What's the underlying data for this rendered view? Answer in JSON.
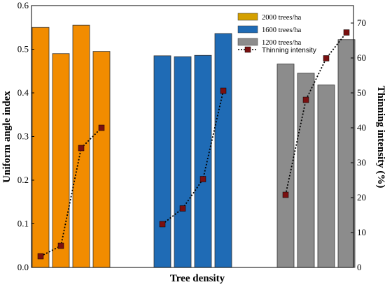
{
  "chart_data": {
    "type": "bar",
    "xlabel": "Tree density",
    "ylabel": "Uniform angle index",
    "y2label": "Thinning intensity (%)",
    "ylim": [
      0,
      0.6
    ],
    "y2lim": [
      0,
      75
    ],
    "yticks": [
      "0.0",
      "0.1",
      "0.2",
      "0.3",
      "0.4",
      "0.5",
      "0.6"
    ],
    "y2ticks": [
      "0",
      "10",
      "20",
      "30",
      "40",
      "50",
      "60",
      "70"
    ],
    "grid": false,
    "legend_position": "top-right",
    "series": [
      {
        "name": "2000 trees/ha",
        "color": "#f28c00",
        "legend_color": "#d4a000",
        "values": [
          0.55,
          0.49,
          0.555,
          0.495
        ]
      },
      {
        "name": "1600 trees/ha",
        "color": "#1f6bb5",
        "legend_color": "#1f6bb5",
        "values": [
          0.485,
          0.483,
          0.486,
          0.536
        ]
      },
      {
        "name": "1200 trees/ha",
        "color": "#8c8c8c",
        "legend_color": "#8c8c8c",
        "values": [
          0.466,
          0.445,
          0.418,
          0.522
        ]
      }
    ],
    "thinning": {
      "name": "Thinning intensity",
      "color": "#000000",
      "marker_color": "#7a1010",
      "groups": [
        [
          3.2,
          6.2,
          34.2,
          40.0
        ],
        [
          12.4,
          16.9,
          25.3,
          50.6
        ],
        [
          20.8,
          48.0,
          59.9,
          67.3
        ]
      ]
    }
  }
}
